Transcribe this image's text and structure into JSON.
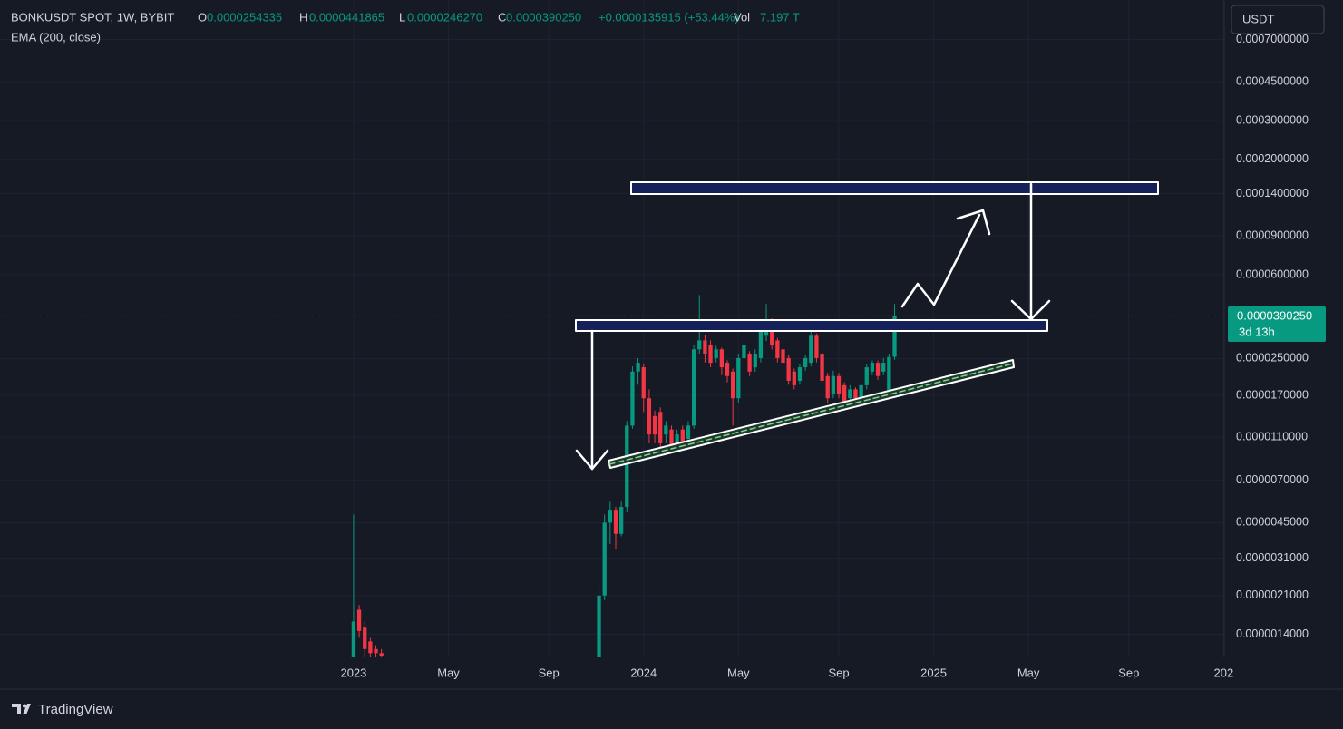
{
  "header": {
    "symbol": "BONKUSDT SPOT, 1W, BYBIT",
    "o_label": "O",
    "o_value": "0.0000254335",
    "h_label": "H",
    "h_value": "0.0000441865",
    "l_label": "L",
    "l_value": "0.0000246270",
    "c_label": "C",
    "c_value": "0.0000390250",
    "change": "+0.0000135915 (+53.44%)",
    "vol_label": "Vol",
    "vol_value": "7.197 T",
    "indicator": "EMA (200, close)"
  },
  "ui": {
    "currency": "USDT",
    "countdown": "3d 13h",
    "brand": "TradingView"
  },
  "chart_data": {
    "type": "candlestick",
    "log_scale": true,
    "grid": true,
    "up_color": "#089981",
    "down_color": "#f23645",
    "x": [
      0,
      1,
      2,
      3,
      4,
      5,
      44,
      45,
      46,
      47,
      48,
      49,
      50,
      51,
      52,
      53,
      54,
      55,
      56,
      57,
      58,
      59,
      60,
      61,
      62,
      63,
      64,
      65,
      66,
      67,
      68,
      69,
      70,
      71,
      72,
      73,
      74,
      75,
      76,
      77,
      78,
      79,
      80,
      81,
      82,
      83,
      84,
      85,
      86,
      87,
      88,
      89,
      90,
      91,
      92,
      93,
      94,
      95,
      96,
      97
    ],
    "open": [
      1e-06,
      1.81e-06,
      1.5e-06,
      1.3e-06,
      1.2e-06,
      1.15e-06,
      1e-06,
      2.1e-06,
      4.5e-06,
      5.1e-06,
      4e-06,
      5.3e-06,
      1.24e-05,
      2.18e-05,
      2.28e-05,
      1.65e-05,
      1.37e-05,
      1.43e-05,
      1.13e-05,
      1.19e-05,
      1.03e-05,
      1.19e-05,
      1.08e-05,
      1.24e-05,
      2.75e-05,
      3.02e-05,
      2.89e-05,
      2.51e-05,
      2.75e-05,
      2.39e-05,
      2.18e-05,
      1.65e-05,
      2.51e-05,
      2.63e-05,
      2.28e-05,
      2.51e-05,
      3.17e-05,
      3.65e-05,
      3.02e-05,
      2.75e-05,
      2.51e-05,
      2.18e-05,
      1.98e-05,
      2.28e-05,
      2.39e-05,
      3.17e-05,
      2.63e-05,
      2.08e-05,
      1.72e-05,
      2.08e-05,
      1.89e-05,
      1.65e-05,
      1.81e-05,
      1.65e-05,
      1.89e-05,
      2.18e-05,
      2.39e-05,
      2.18e-05,
      1.75e-05,
      2.54335e-05
    ],
    "high": [
      4.9e-06,
      1.9e-06,
      1.6e-06,
      1.35e-06,
      1.25e-06,
      1.2e-06,
      2.3e-06,
      4.9e-06,
      5.6e-06,
      5.3e-06,
      5.6e-06,
      1.3e-05,
      2.3e-05,
      2.51e-05,
      2.35e-05,
      1.81e-05,
      1.45e-05,
      1.5e-05,
      1.3e-05,
      1.24e-05,
      1.19e-05,
      1.24e-05,
      1.3e-05,
      2.89e-05,
      4.85e-05,
      3.2e-05,
      3.02e-05,
      2.85e-05,
      2.8e-05,
      2.45e-05,
      2.25e-05,
      2.63e-05,
      3.02e-05,
      2.7e-05,
      2.75e-05,
      3.4e-05,
      4.42e-05,
      3.8e-05,
      3.1e-05,
      2.8e-05,
      2.6e-05,
      2.25e-05,
      2.35e-05,
      2.6e-05,
      3.32e-05,
      3.25e-05,
      2.7e-05,
      2.15e-05,
      2.2e-05,
      2.15e-05,
      1.95e-05,
      1.89e-05,
      1.85e-05,
      1.95e-05,
      2.35e-05,
      2.45e-05,
      2.45e-05,
      2.51e-05,
      2.63e-05,
      4.41865e-05
    ],
    "low": [
      9e-07,
      1.35e-06,
      1.1e-06,
      1.1e-06,
      1.1e-06,
      1.1e-06,
      9e-07,
      2e-06,
      3.6e-06,
      3.4e-06,
      3.9e-06,
      5e-06,
      1.2e-05,
      1.9e-05,
      1.43e-05,
      1.03e-05,
      1.03e-05,
      9.8e-06,
      1.03e-05,
      9.4e-06,
      9.8e-06,
      9.8e-06,
      1.03e-05,
      1.2e-05,
      2.63e-05,
      2.4e-05,
      2.28e-05,
      2.4e-05,
      2.1e-05,
      1.95e-05,
      1.24e-05,
      1.57e-05,
      2.4e-05,
      2.08e-05,
      2.18e-05,
      2.4e-05,
      3e-05,
      2.75e-05,
      2.4e-05,
      2.2e-05,
      1.9e-05,
      1.81e-05,
      1.9e-05,
      2.2e-05,
      2.3e-05,
      2.4e-05,
      1.9e-05,
      1.57e-05,
      1.65e-05,
      1.65e-05,
      1.5e-05,
      1.57e-05,
      1.57e-05,
      1.6e-05,
      1.81e-05,
      2.1e-05,
      2e-05,
      2.1e-05,
      1.7e-05,
      2.4627e-05
    ],
    "close": [
      1.6e-06,
      1.45e-06,
      1.2e-06,
      1.15e-06,
      1.15e-06,
      1.12e-06,
      2.1e-06,
      4.5e-06,
      5.1e-06,
      4e-06,
      5.3e-06,
      1.24e-05,
      2.18e-05,
      2.39e-05,
      1.65e-05,
      1.13e-05,
      1.13e-05,
      1.03e-05,
      1.24e-05,
      9.8e-06,
      1.13e-05,
      1.03e-05,
      1.24e-05,
      2.75e-05,
      3.02e-05,
      2.63e-05,
      2.39e-05,
      2.75e-05,
      2.28e-05,
      2.08e-05,
      1.65e-05,
      2.51e-05,
      2.89e-05,
      2.18e-05,
      2.63e-05,
      3.32e-05,
      3.65e-05,
      2.89e-05,
      2.51e-05,
      2.39e-05,
      1.98e-05,
      1.89e-05,
      2.28e-05,
      2.51e-05,
      3.17e-05,
      2.51e-05,
      1.98e-05,
      1.65e-05,
      2.08e-05,
      1.72e-05,
      1.57e-05,
      1.81e-05,
      1.65e-05,
      1.89e-05,
      2.28e-05,
      2.39e-05,
      2.08e-05,
      2.39e-05,
      2.54e-05,
      3.9025e-05
    ],
    "xlim": [
      -63.4,
      156.1
    ],
    "xticks": [
      {
        "value": 0,
        "label": "2023"
      },
      {
        "value": 17,
        "label": "May"
      },
      {
        "value": 35,
        "label": "Sep"
      },
      {
        "value": 52,
        "label": "2024"
      },
      {
        "value": 69,
        "label": "May"
      },
      {
        "value": 87,
        "label": "Sep"
      },
      {
        "value": 104,
        "label": "2025"
      },
      {
        "value": 121,
        "label": "May"
      },
      {
        "value": 139,
        "label": "Sep"
      },
      {
        "value": 156,
        "label": "202"
      }
    ],
    "ylim": [
      1.1e-06,
      0.00076
    ],
    "yticks": [
      {
        "value": 0.0007,
        "label": "0.0007000000"
      },
      {
        "value": 0.00045,
        "label": "0.0004500000"
      },
      {
        "value": 0.0003,
        "label": "0.0003000000"
      },
      {
        "value": 0.0002,
        "label": "0.0002000000"
      },
      {
        "value": 0.00014,
        "label": "0.0001400000"
      },
      {
        "value": 9e-05,
        "label": "0.0000900000"
      },
      {
        "value": 6e-05,
        "label": "0.0000600000"
      },
      {
        "value": 2.5e-05,
        "label": "0.0000250000"
      },
      {
        "value": 1.7e-05,
        "label": "0.0000170000"
      },
      {
        "value": 1.1e-05,
        "label": "0.0000110000"
      },
      {
        "value": 7e-06,
        "label": "0.0000070000"
      },
      {
        "value": 4.5e-06,
        "label": "0.0000045000"
      },
      {
        "value": 3.1e-06,
        "label": "0.0000031000"
      },
      {
        "value": 2.1e-06,
        "label": "0.0000021000"
      },
      {
        "value": 1.4e-06,
        "label": "0.0000014000"
      }
    ]
  }
}
